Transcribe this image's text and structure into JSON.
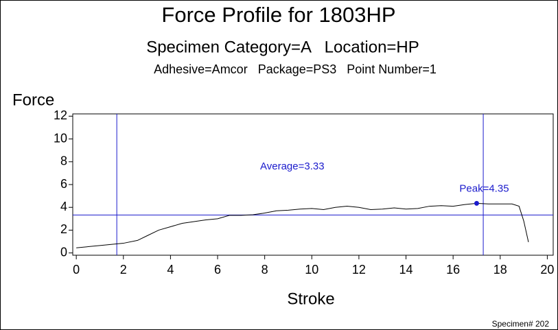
{
  "chart_data": {
    "type": "line",
    "title": "Force Profile for 1803HP",
    "subtitles": [
      "Specimen Category=A   Location=HP",
      "Adhesive=Amcor   Package=PS3   Point Number=1"
    ],
    "x_label": "Stroke",
    "y_label": "Force",
    "footnote": "Specimen# 202",
    "x": [
      0,
      1,
      2,
      2.6,
      3,
      3.5,
      4,
      4.5,
      5,
      5.5,
      6,
      6.5,
      7,
      7.5,
      8,
      8.5,
      9,
      9.5,
      10,
      10.5,
      11,
      11.5,
      12,
      12.5,
      13,
      13.5,
      14,
      14.5,
      15,
      15.5,
      16,
      16.5,
      17,
      17.5,
      18,
      18.5,
      18.8,
      19,
      19.2
    ],
    "series": [
      {
        "color": "#000000",
        "values": [
          0.45,
          0.65,
          0.85,
          1.1,
          1.5,
          2.0,
          2.3,
          2.6,
          2.75,
          2.9,
          3.0,
          3.3,
          3.3,
          3.35,
          3.5,
          3.7,
          3.75,
          3.85,
          3.9,
          3.8,
          4.0,
          4.1,
          4.0,
          3.8,
          3.85,
          3.95,
          3.85,
          3.9,
          4.1,
          4.15,
          4.1,
          4.25,
          4.35,
          4.3,
          4.3,
          4.3,
          4.1,
          2.8,
          0.95
        ]
      }
    ],
    "xlim": [
      -0.15,
      20.25
    ],
    "ylim": [
      -0.2,
      12.2
    ],
    "xticks": [
      0,
      2,
      4,
      6,
      8,
      10,
      12,
      14,
      16,
      18,
      20
    ],
    "yticks": [
      0,
      2,
      4,
      6,
      8,
      10,
      12
    ],
    "reference_color": "#1a1acc",
    "x_reference_lines": [
      1.72,
      17.28
    ],
    "average": {
      "value": 3.33,
      "label": "Average=3.33"
    },
    "peak": {
      "x": 17,
      "value": 4.35,
      "label": "Peak=4.35"
    }
  }
}
